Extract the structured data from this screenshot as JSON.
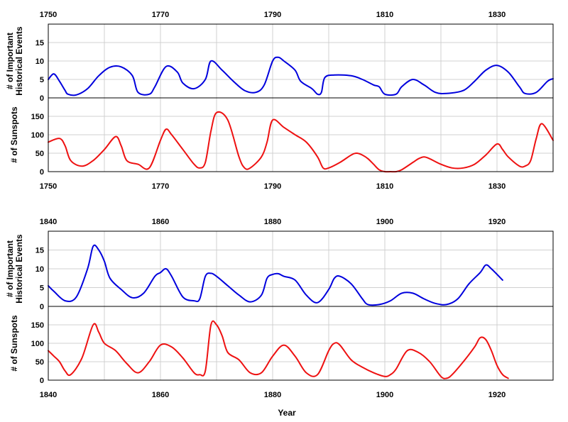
{
  "chart_data": {
    "type": "line",
    "xlabel": "Year",
    "colors": {
      "events": "#0000dd",
      "sunspots": "#ee1111",
      "grid": "#d0d0d0"
    },
    "rows": [
      {
        "name": "row-1750",
        "xlim": [
          1750,
          1840
        ],
        "top_tick_labels": [
          "1750",
          "1770",
          "1790",
          "1810",
          "1830"
        ],
        "bottom_tick_labels": [
          "1750",
          "1770",
          "1790",
          "1810",
          "1830"
        ],
        "panels": [
          {
            "name": "events",
            "ylabel_lines": [
              "# of Important",
              "Historical Events"
            ],
            "ylim": [
              0,
              20
            ],
            "yticks": [
              "0",
              "5",
              "10",
              "15"
            ],
            "ytick_values": [
              0,
              5,
              10,
              15
            ],
            "series": {
              "name": "Important Historical Events",
              "x": [
                1750,
                1751,
                1752,
                1753,
                1753.5,
                1755,
                1757,
                1759,
                1761,
                1763,
                1765,
                1766,
                1768,
                1769,
                1771,
                1773,
                1774,
                1776,
                1778,
                1779,
                1781,
                1783,
                1785,
                1787,
                1788.5,
                1790,
                1791,
                1792,
                1794,
                1795,
                1797,
                1798,
                1798.7,
                1799.3,
                1801,
                1804,
                1806,
                1808,
                1809,
                1810,
                1812,
                1813,
                1815,
                1817,
                1819,
                1821,
                1824,
                1826,
                1828,
                1830,
                1832,
                1834,
                1835,
                1837,
                1839,
                1840
              ],
              "values": [
                5,
                6.5,
                4.5,
                2,
                1,
                0.8,
                2.5,
                6,
                8.3,
                8.4,
                6,
                1.5,
                1,
                3,
                8.5,
                7,
                4,
                2.5,
                5,
                10,
                7.5,
                4.5,
                2,
                1.5,
                3.5,
                10,
                11,
                10,
                7.5,
                4.5,
                2.5,
                1,
                1.5,
                5.5,
                6.2,
                6,
                5,
                3.5,
                3,
                1,
                1,
                3,
                5,
                3.5,
                1.5,
                1.2,
                2,
                4.5,
                7.5,
                8.8,
                7,
                3,
                1.2,
                1.5,
                4.5,
                5.2
              ]
            }
          },
          {
            "name": "sunspots",
            "ylabel_lines": [
              "# of Sunspots"
            ],
            "ylim": [
              0,
              200
            ],
            "yticks": [
              "0",
              "50",
              "100",
              "150"
            ],
            "ytick_values": [
              0,
              50,
              100,
              150
            ],
            "series": {
              "name": "Number of Sunspots",
              "x": [
                1750,
                1752,
                1753,
                1754,
                1756,
                1758,
                1760,
                1762,
                1763,
                1764,
                1766,
                1768,
                1770,
                1771,
                1772,
                1774,
                1776,
                1777,
                1778,
                1779,
                1780,
                1782,
                1784,
                1785,
                1786,
                1788,
                1789,
                1790,
                1792,
                1794,
                1796,
                1798,
                1799,
                1800,
                1802,
                1804,
                1805,
                1806,
                1807,
                1808,
                1809,
                1810,
                1811,
                1812,
                1813,
                1815,
                1816,
                1817,
                1818,
                1820,
                1822,
                1824,
                1826,
                1828,
                1830,
                1831,
                1832,
                1834,
                1835,
                1836,
                1837,
                1838,
                1840
              ],
              "values": [
                80,
                90,
                70,
                30,
                15,
                30,
                60,
                95,
                70,
                30,
                20,
                10,
                85,
                115,
                100,
                60,
                20,
                10,
                25,
                110,
                160,
                140,
                40,
                10,
                10,
                40,
                80,
                140,
                120,
                100,
                80,
                40,
                10,
                10,
                25,
                45,
                50,
                45,
                35,
                20,
                5,
                0,
                0,
                0,
                5,
                25,
                35,
                40,
                35,
                20,
                10,
                10,
                20,
                45,
                75,
                60,
                40,
                15,
                15,
                30,
                90,
                130,
                85
              ]
            }
          }
        ]
      },
      {
        "name": "row-1840",
        "xlim": [
          1840,
          1930
        ],
        "top_tick_labels": [
          "1840",
          "1860",
          "1880",
          "1900",
          "1920"
        ],
        "bottom_tick_labels": [
          "1840",
          "1860",
          "1880",
          "1900",
          "1920"
        ],
        "panels": [
          {
            "name": "events",
            "ylabel_lines": [
              "# of Important",
              "Historical Events"
            ],
            "ylim": [
              0,
              20
            ],
            "yticks": [
              "0",
              "5",
              "10",
              "15"
            ],
            "ytick_values": [
              0,
              5,
              10,
              15
            ],
            "series": {
              "name": "Important Historical Events",
              "x": [
                1840,
                1841,
                1843,
                1845,
                1847,
                1848,
                1849,
                1850,
                1851,
                1853,
                1855,
                1857,
                1859,
                1860,
                1861,
                1862,
                1864,
                1866,
                1867,
                1868,
                1869,
                1870,
                1872,
                1874,
                1876,
                1878,
                1879,
                1880,
                1881,
                1882,
                1884,
                1886,
                1888,
                1890,
                1891,
                1892,
                1894,
                1896,
                1897,
                1899,
                1901,
                1903,
                1905,
                1907,
                1909,
                1911,
                1913,
                1915,
                1917,
                1918,
                1919,
                1921
              ],
              "values": [
                5.5,
                4,
                1.5,
                2.5,
                10,
                16,
                15,
                12,
                7.5,
                4.5,
                2.3,
                3.5,
                8,
                9,
                10,
                8,
                2.5,
                1.5,
                2,
                8,
                8.8,
                8,
                5.5,
                3,
                1.2,
                3,
                7.5,
                8.5,
                8.7,
                8,
                7,
                3,
                1,
                4.5,
                7.5,
                8,
                6,
                2,
                0.5,
                0.5,
                1.5,
                3.5,
                3.5,
                2,
                0.8,
                0.5,
                2,
                6,
                9,
                11,
                10,
                7
              ]
            }
          },
          {
            "name": "sunspots",
            "ylabel_lines": [
              "# of Sunspots"
            ],
            "ylim": [
              0,
              200
            ],
            "yticks": [
              "0",
              "50",
              "100",
              "150"
            ],
            "ytick_values": [
              0,
              50,
              100,
              150
            ],
            "series": {
              "name": "Number of Sunspots",
              "x": [
                1840,
                1841,
                1842,
                1843,
                1844,
                1846,
                1848,
                1849,
                1850,
                1852,
                1854,
                1856,
                1858,
                1860,
                1862,
                1864,
                1866,
                1867,
                1868,
                1869,
                1870,
                1871,
                1872,
                1874,
                1876,
                1878,
                1880,
                1882,
                1884,
                1886,
                1888,
                1890,
                1891,
                1892,
                1894,
                1896,
                1898,
                1900,
                1901,
                1902,
                1904,
                1906,
                1908,
                1910,
                1911,
                1912,
                1914,
                1916,
                1917,
                1918,
                1919,
                1920,
                1921,
                1922
              ],
              "values": [
                80,
                65,
                50,
                25,
                15,
                60,
                150,
                130,
                100,
                80,
                45,
                20,
                50,
                95,
                90,
                60,
                20,
                15,
                25,
                150,
                150,
                120,
                75,
                55,
                20,
                20,
                65,
                95,
                65,
                20,
                15,
                80,
                100,
                95,
                55,
                35,
                20,
                10,
                15,
                30,
                80,
                75,
                50,
                10,
                5,
                15,
                50,
                90,
                115,
                110,
                80,
                40,
                15,
                5
              ]
            }
          }
        ]
      }
    ]
  }
}
